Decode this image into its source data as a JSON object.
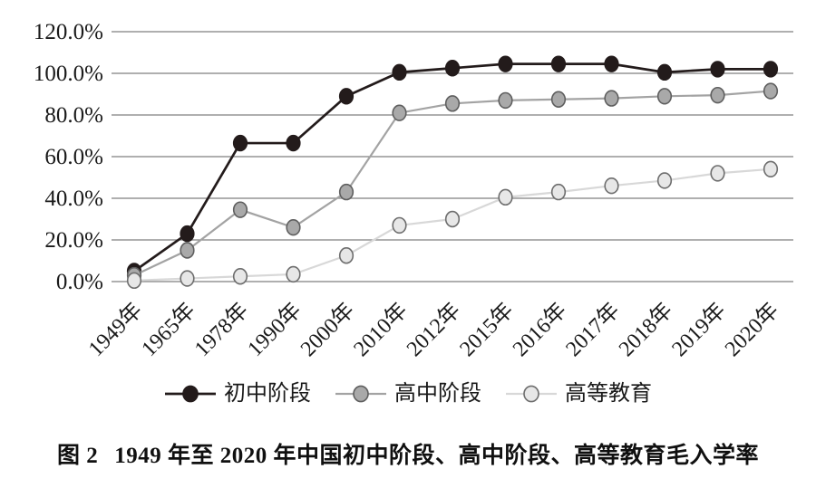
{
  "figure": {
    "caption_label": "图 2",
    "caption_text": "1949 年至 2020 年中国初中阶段、高中阶段、高等教育毛入学率"
  },
  "colors": {
    "gridline": "#7f7f7f",
    "tick_text": "#1a1a1a",
    "background": "#ffffff"
  },
  "chart_data": {
    "type": "line",
    "title": "",
    "xlabel": "",
    "ylabel": "",
    "categories": [
      "1949年",
      "1965年",
      "1978年",
      "1990年",
      "2000年",
      "2010年",
      "2012年",
      "2015年",
      "2016年",
      "2017年",
      "2018年",
      "2019年",
      "2020年"
    ],
    "series": [
      {
        "id": "junior-secondary",
        "name": "初中阶段",
        "values": [
          5,
          23,
          66.5,
          66.5,
          89,
          100.5,
          102.5,
          104.5,
          104.5,
          104.5,
          100.5,
          102,
          102
        ],
        "line_color": "#231b1b",
        "marker_fill": "#231b1b",
        "marker_stroke": "#231b1b"
      },
      {
        "id": "senior-secondary",
        "name": "高中阶段",
        "values": [
          3,
          15,
          34.5,
          26,
          43,
          81,
          85.5,
          87,
          87.5,
          88,
          89,
          89.5,
          91.5
        ],
        "line_color": "#a3a3a3",
        "marker_fill": "#a9a9a9",
        "marker_stroke": "#5f5f5f"
      },
      {
        "id": "higher-education",
        "name": "高等教育",
        "values": [
          0.5,
          1.5,
          2.5,
          3.5,
          12.5,
          27,
          30,
          40.5,
          43,
          46,
          48.5,
          52,
          54
        ],
        "line_color": "#d8d8d8",
        "marker_fill": "#e7e7e7",
        "marker_stroke": "#6e6e6e"
      }
    ],
    "ylim": [
      0,
      120
    ],
    "ytick_step": 20,
    "ytick_labels": [
      "0.0%",
      "20.0%",
      "40.0%",
      "60.0%",
      "80.0%",
      "100.0%",
      "120.0%"
    ],
    "x_tick_rotation_deg": 45,
    "grid": true,
    "legend_position": "bottom",
    "units": "percent"
  }
}
